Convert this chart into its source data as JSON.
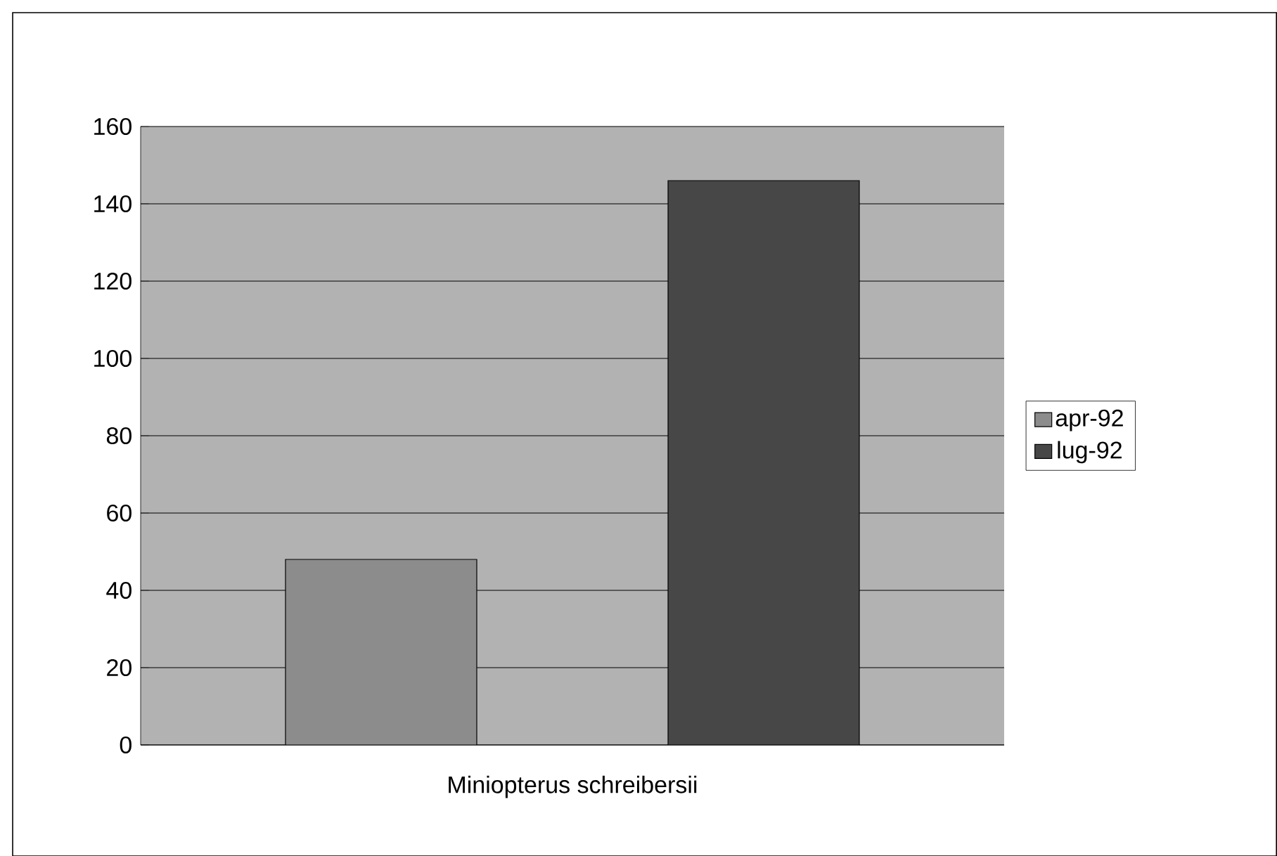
{
  "chart_data": {
    "type": "bar",
    "categories": [
      "Miniopterus schreibersii"
    ],
    "series": [
      {
        "name": "apr-92",
        "color": "#8c8c8c",
        "values": [
          48
        ]
      },
      {
        "name": "lug-92",
        "color": "#474747",
        "values": [
          146
        ]
      }
    ],
    "ylim": [
      0,
      160
    ],
    "yticks": [
      0,
      20,
      40,
      60,
      80,
      100,
      120,
      140,
      160
    ],
    "grid": "y",
    "legend": "right"
  }
}
